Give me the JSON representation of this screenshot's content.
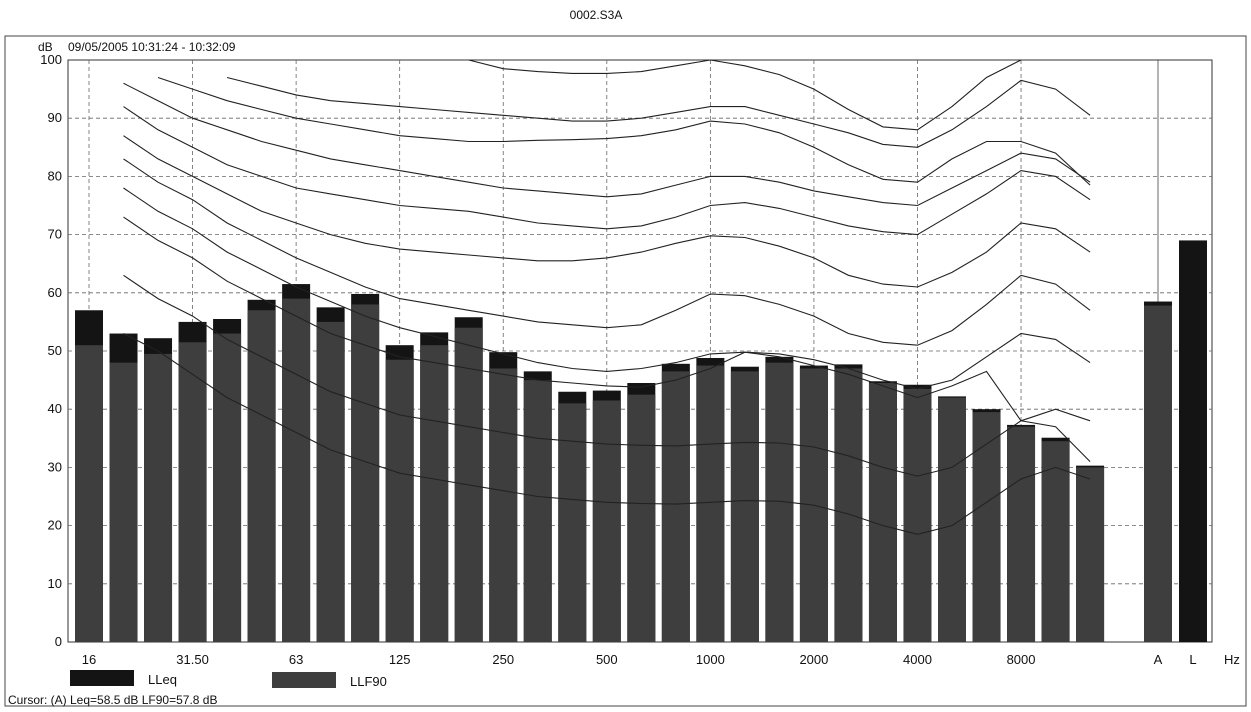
{
  "file_label": "0002.S3A",
  "chart_data": {
    "type": "bar",
    "ylabel": "dB",
    "time_range": "09/05/2005 10:31:24 - 10:32:09",
    "ylim": [
      0,
      100
    ],
    "yticks": [
      0,
      10,
      20,
      30,
      40,
      50,
      60,
      70,
      80,
      90,
      100
    ],
    "grid": true,
    "x_unit_label": "Hz",
    "band_tick_labels": [
      {
        "band": 0,
        "label": "16"
      },
      {
        "band": 3,
        "label": "31.50"
      },
      {
        "band": 6,
        "label": "63"
      },
      {
        "band": 9,
        "label": "125"
      },
      {
        "band": 12,
        "label": "250"
      },
      {
        "band": 15,
        "label": "500"
      },
      {
        "band": 18,
        "label": "1000"
      },
      {
        "band": 21,
        "label": "2000"
      },
      {
        "band": 24,
        "label": "4000"
      },
      {
        "band": 27,
        "label": "8000"
      }
    ],
    "series": [
      {
        "name": "LLeq",
        "values": [
          57,
          53,
          52.2,
          55,
          55.5,
          58.8,
          61.5,
          57.5,
          59.8,
          51,
          53.2,
          55.8,
          49.8,
          46.5,
          43,
          43.2,
          44.5,
          47.8,
          48.8,
          47.3,
          49,
          47.5,
          47.7,
          44.8,
          44.2,
          42.2,
          40,
          37.3,
          35.1,
          30.3
        ],
        "color": "#141414"
      },
      {
        "name": "LLF90",
        "values": [
          51,
          48,
          49.5,
          51.5,
          53,
          57,
          59,
          55,
          58,
          48.5,
          51,
          54,
          47,
          45,
          41,
          41.5,
          42.5,
          46.5,
          47.5,
          46.5,
          48,
          47,
          47,
          44.5,
          43.5,
          42,
          39.5,
          37,
          34.5,
          30
        ],
        "color": "#3e3e3e"
      }
    ],
    "broadband": [
      {
        "label": "A",
        "LLeq": 58.5,
        "LLF90": 57.8
      },
      {
        "label": "L",
        "LLeq": 69
      }
    ],
    "curves": [
      {
        "band_start": 0,
        "values": [
          null,
          53,
          50,
          46,
          42,
          39,
          36,
          33,
          31,
          29,
          28,
          27,
          26,
          25,
          24.5,
          24,
          23.8,
          23.7,
          24,
          24.3,
          24.2,
          23.5,
          22,
          20,
          18.5,
          20,
          24,
          28,
          30,
          28
        ]
      },
      {
        "band_start": 0,
        "values": [
          null,
          63,
          59,
          56,
          52,
          49,
          46,
          43,
          41,
          39,
          38,
          37,
          36,
          35,
          34.5,
          34,
          33.8,
          33.7,
          34,
          34.3,
          34.2,
          33.5,
          32,
          30,
          28.5,
          30,
          34,
          38,
          40,
          38
        ]
      },
      {
        "band_start": 0,
        "values": [
          null,
          73,
          69,
          66,
          62,
          59,
          56,
          53,
          51,
          49,
          48,
          47,
          46,
          45,
          44.5,
          44,
          43.8,
          45,
          47,
          49.8,
          49,
          47.5,
          46,
          44,
          42,
          44,
          46.5,
          38,
          37,
          31
        ]
      },
      {
        "band_start": 0,
        "values": [
          null,
          78,
          74,
          71,
          67,
          64,
          61,
          58.5,
          56,
          54,
          52.5,
          51,
          49.5,
          48,
          47,
          46.5,
          47,
          48,
          49.5,
          49.8,
          49.5,
          48.5,
          47,
          45,
          43.5,
          45,
          49,
          53,
          52,
          48
        ]
      },
      {
        "band_start": 0,
        "values": [
          null,
          83,
          79,
          76,
          72,
          69,
          66,
          63.5,
          61,
          59,
          58,
          57,
          56,
          55,
          54.5,
          54,
          54.5,
          57,
          59.8,
          59.5,
          58,
          56,
          53,
          51.5,
          51,
          53.5,
          58,
          63,
          61.5,
          57
        ]
      },
      {
        "band_start": 0,
        "values": [
          null,
          87,
          83,
          80,
          77,
          74,
          72,
          70,
          68.5,
          67.5,
          67,
          66.5,
          66,
          65.5,
          65.5,
          66,
          67,
          68.5,
          69.8,
          69.5,
          68,
          66,
          63,
          61.5,
          61,
          63.5,
          67,
          72,
          71,
          67
        ]
      },
      {
        "band_start": 0,
        "values": [
          null,
          92,
          88,
          85,
          82,
          80,
          78,
          77,
          76,
          75,
          74.5,
          74,
          73,
          72,
          71.5,
          71,
          71.5,
          73,
          75,
          75.5,
          74.5,
          73,
          71.5,
          70.5,
          70,
          73.5,
          77,
          81,
          80,
          76
        ]
      },
      {
        "band_start": 0,
        "values": [
          null,
          96,
          93,
          90,
          88,
          86,
          84.5,
          83,
          82,
          81,
          80,
          79,
          78,
          77.5,
          77,
          76.5,
          77,
          78.5,
          80,
          80,
          79,
          77.5,
          76.5,
          75.5,
          75,
          78,
          81,
          84,
          83,
          79
        ]
      },
      {
        "band_start": 0,
        "values": [
          null,
          null,
          97,
          95,
          93,
          91.5,
          90,
          89,
          88,
          87,
          86.5,
          86,
          86,
          86.2,
          86.3,
          86.5,
          87,
          88,
          89.5,
          89,
          87.5,
          85,
          82,
          79.5,
          79,
          83,
          86,
          86,
          84,
          78.5
        ]
      },
      {
        "band_start": 0,
        "values": [
          null,
          null,
          null,
          null,
          97,
          95.5,
          94,
          93,
          92.5,
          92,
          91.5,
          91,
          90.5,
          90,
          89.5,
          89.5,
          90,
          91,
          92,
          92,
          90.5,
          89,
          87.5,
          85.5,
          85,
          88,
          92,
          96.5,
          95,
          90.5
        ]
      },
      {
        "band_start": 0,
        "values": [
          null,
          null,
          null,
          null,
          null,
          null,
          null,
          null,
          null,
          null,
          null,
          100,
          98.5,
          98,
          97.7,
          97.7,
          98,
          99,
          100,
          99,
          97.5,
          95,
          91.5,
          88.5,
          88,
          92,
          97,
          100,
          null,
          null
        ]
      }
    ],
    "a_line_value": 100
  },
  "legend": [
    {
      "label": "LLeq",
      "color": "#141414"
    },
    {
      "label": "LLF90",
      "color": "#3e3e3e"
    }
  ],
  "cursor_text": "Cursor: (A) Leq=58.5 dB LF90=57.8 dB"
}
